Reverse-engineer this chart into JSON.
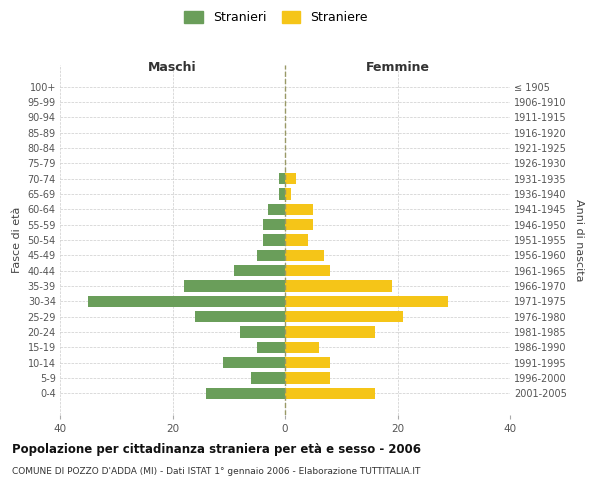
{
  "age_groups": [
    "100+",
    "95-99",
    "90-94",
    "85-89",
    "80-84",
    "75-79",
    "70-74",
    "65-69",
    "60-64",
    "55-59",
    "50-54",
    "45-49",
    "40-44",
    "35-39",
    "30-34",
    "25-29",
    "20-24",
    "15-19",
    "10-14",
    "5-9",
    "0-4"
  ],
  "birth_years": [
    "≤ 1905",
    "1906-1910",
    "1911-1915",
    "1916-1920",
    "1921-1925",
    "1926-1930",
    "1931-1935",
    "1936-1940",
    "1941-1945",
    "1946-1950",
    "1951-1955",
    "1956-1960",
    "1961-1965",
    "1966-1970",
    "1971-1975",
    "1976-1980",
    "1981-1985",
    "1986-1990",
    "1991-1995",
    "1996-2000",
    "2001-2005"
  ],
  "maschi": [
    0,
    0,
    0,
    0,
    0,
    0,
    1,
    1,
    3,
    4,
    4,
    5,
    9,
    18,
    35,
    16,
    8,
    5,
    11,
    6,
    14
  ],
  "femmine": [
    0,
    0,
    0,
    0,
    0,
    0,
    2,
    1,
    5,
    5,
    4,
    7,
    8,
    19,
    29,
    21,
    16,
    6,
    8,
    8,
    16
  ],
  "color_maschi": "#6a9e5a",
  "color_femmine": "#f5c518",
  "background_color": "#ffffff",
  "grid_color": "#cccccc",
  "dashed_line_color": "#999966",
  "title": "Popolazione per cittadinanza straniera per età e sesso - 2006",
  "subtitle": "COMUNE DI POZZO D'ADDA (MI) - Dati ISTAT 1° gennaio 2006 - Elaborazione TUTTITALIA.IT",
  "xlabel_left": "Maschi",
  "xlabel_right": "Femmine",
  "ylabel_left": "Fasce di età",
  "ylabel_right": "Anni di nascita",
  "xlim": 40,
  "legend_maschi": "Stranieri",
  "legend_femmine": "Straniere"
}
